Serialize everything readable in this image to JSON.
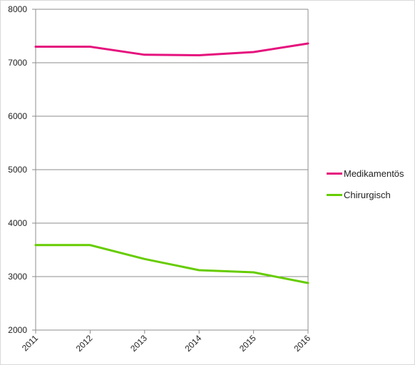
{
  "chart_data": {
    "type": "line",
    "title": "",
    "xlabel": "",
    "ylabel": "",
    "categories": [
      "2011",
      "2012",
      "2013",
      "2014",
      "2015",
      "2016"
    ],
    "ylim": [
      2000,
      8000
    ],
    "yticks": [
      "2000",
      "3000",
      "4000",
      "5000",
      "6000",
      "7000",
      "8000"
    ],
    "grid": true,
    "legend_position": "right",
    "series": [
      {
        "name": "Medikamentös",
        "color": "#e5127d",
        "values": [
          7300,
          7300,
          7150,
          7140,
          7200,
          7360
        ]
      },
      {
        "name": "Chirurgisch",
        "color": "#66cc00",
        "values": [
          3590,
          3590,
          3330,
          3120,
          3080,
          2880
        ]
      }
    ]
  }
}
